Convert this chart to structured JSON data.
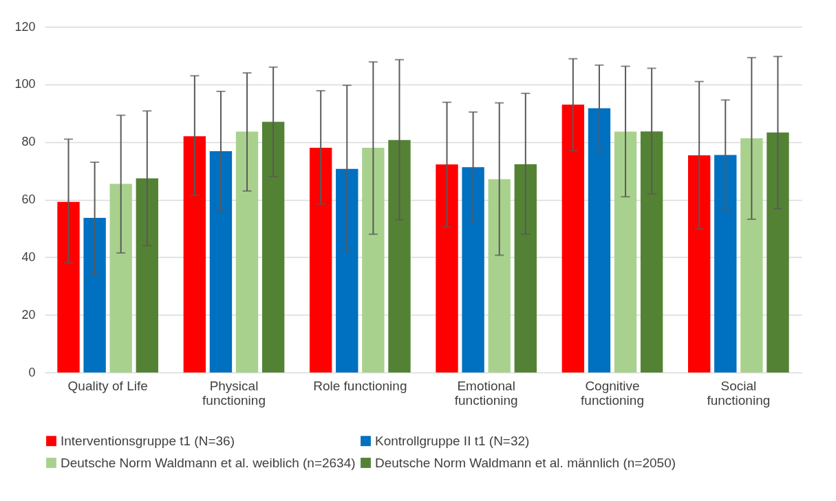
{
  "chart_data": {
    "type": "bar",
    "categories": [
      "Quality of Life",
      "Physical functioning",
      "Role functioning",
      "Emotional functioning",
      "Cognitive functioning",
      "Social functioning"
    ],
    "series": [
      {
        "name": "Interventionsgruppe t1 (N=36)",
        "color": "#ff0000",
        "values": [
          59.2,
          82,
          78,
          72.2,
          93,
          75.4
        ],
        "errors": [
          [
            38,
            81
          ],
          [
            61.5,
            103
          ],
          [
            58.5,
            97.8
          ],
          [
            50.5,
            93.8
          ],
          [
            77,
            108.9
          ],
          [
            49.8,
            101
          ]
        ]
      },
      {
        "name": "Kontrollgruppe II t1 (N=32)",
        "color": "#0070c0",
        "values": [
          53.7,
          76.8,
          70.7,
          71.3,
          91.7,
          75.5
        ],
        "errors": [
          [
            34,
            73
          ],
          [
            56,
            97.6
          ],
          [
            42,
            99.7
          ],
          [
            52.4,
            90.4
          ],
          [
            76.7,
            106.7
          ],
          [
            56.4,
            94.6
          ]
        ]
      },
      {
        "name": "Deutsche Norm  Waldmann et al. weiblich (n=2634)",
        "color": "#a9d18e",
        "values": [
          65.5,
          83.6,
          78,
          67.1,
          83.6,
          81.3
        ],
        "errors": [
          [
            41.5,
            89.3
          ],
          [
            63,
            104
          ],
          [
            48,
            107.8
          ],
          [
            40.7,
            93.6
          ],
          [
            61,
            106.3
          ],
          [
            53.2,
            109.3
          ]
        ]
      },
      {
        "name": "Deutsche Norm Waldmann et al. männlich (n=2050)",
        "color": "#548235",
        "values": [
          67.4,
          87,
          80.7,
          72.3,
          83.7,
          83.3
        ],
        "errors": [
          [
            44,
            90.8
          ],
          [
            68,
            106
          ],
          [
            53,
            108.6
          ],
          [
            48,
            96.9
          ],
          [
            62,
            105.6
          ],
          [
            56.8,
            109.7
          ]
        ]
      }
    ],
    "ylim": [
      0,
      120
    ],
    "yticks": [
      0,
      20,
      40,
      60,
      80,
      100,
      120
    ],
    "grid": "y",
    "legend": "bottom"
  }
}
